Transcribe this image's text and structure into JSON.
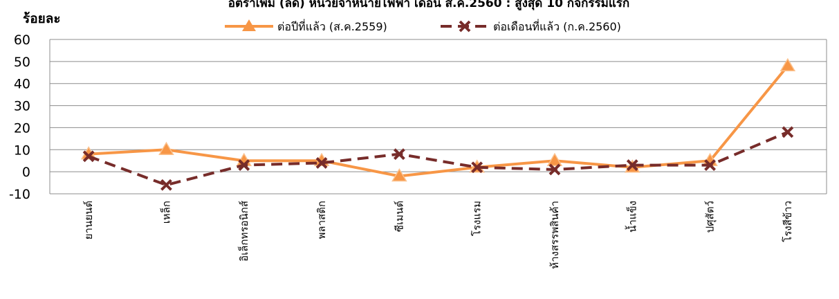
{
  "chart_data": {
    "type": "line",
    "title": "อัตราเพิ่ม (ลด) หน่วยจำหน่ายไฟฟ้า เดือน ส.ค.2560 : สูงสุด 10 กิจกรรมแรก",
    "ylabel": "ร้อยละ",
    "xlabel": "",
    "ylim": [
      -10,
      60
    ],
    "yticks": [
      -10,
      0,
      10,
      20,
      30,
      40,
      50,
      60
    ],
    "grid": "horizontal",
    "legend_position": "top",
    "categories": [
      "ยานยนต์",
      "เหล็ก",
      "อิเล็กทรอนิกส์",
      "พลาสติก",
      "ซีเมนต์",
      "โรงแรม",
      "ห้างสรรพสินค้า",
      "น้ำแข็ง",
      "ปศุสัตว์",
      "โรงสีข้าว"
    ],
    "series": [
      {
        "name": "ต่อปีที่แล้ว (ส.ค.2559)",
        "color": "#F79646",
        "marker": "triangle",
        "values": [
          8,
          10,
          5,
          5,
          -2,
          2,
          5,
          2,
          5,
          48
        ]
      },
      {
        "name": "ต่อเดือนที่แล้ว (ก.ค.2560)",
        "color": "#772C2A",
        "marker": "x",
        "dashed": true,
        "values": [
          7,
          -6,
          3,
          4,
          8,
          2,
          1,
          3,
          3,
          18
        ]
      }
    ]
  }
}
